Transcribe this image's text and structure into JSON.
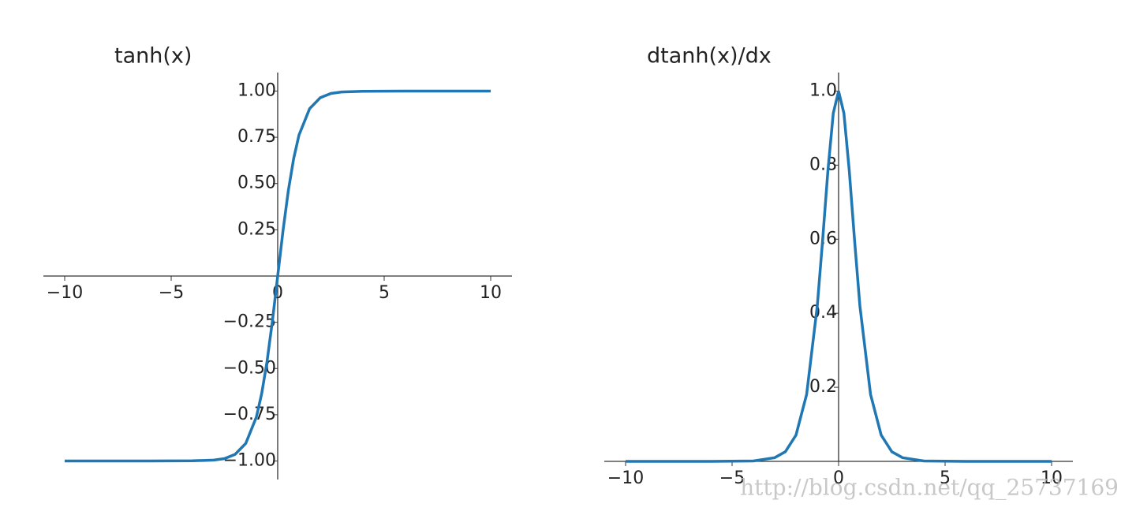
{
  "chart_data": [
    {
      "type": "line",
      "title": "tanh(x)",
      "color": "#1f77b4",
      "x": [
        -10,
        -8,
        -6,
        -4,
        -3,
        -2.5,
        -2,
        -1.5,
        -1,
        -0.75,
        -0.5,
        -0.25,
        0,
        0.25,
        0.5,
        0.75,
        1,
        1.5,
        2,
        2.5,
        3,
        4,
        6,
        8,
        10
      ],
      "values": [
        -1.0,
        -1.0,
        -1.0,
        -0.999,
        -0.995,
        -0.987,
        -0.964,
        -0.905,
        -0.762,
        -0.635,
        -0.462,
        -0.245,
        0,
        0.245,
        0.462,
        0.635,
        0.762,
        0.905,
        0.964,
        0.987,
        0.995,
        0.999,
        1.0,
        1.0,
        1.0
      ],
      "xlim": [
        -11,
        11
      ],
      "ylim": [
        -1.1,
        1.1
      ],
      "xticks": [
        {
          "value": -10,
          "label": "−10"
        },
        {
          "value": -5,
          "label": "−5"
        },
        0,
        5,
        10
      ],
      "yticks": [
        {
          "value": -1,
          "label": "−1.00"
        },
        {
          "value": -0.75,
          "label": "−0.75"
        },
        {
          "value": -0.5,
          "label": "−0.50"
        },
        {
          "value": -0.25,
          "label": "−0.25"
        },
        {
          "value": 0.25,
          "label": "0.25"
        },
        {
          "value": 0.5,
          "label": "0.50"
        },
        {
          "value": 0.75,
          "label": "0.75"
        },
        {
          "value": 1,
          "label": "1.00"
        }
      ]
    },
    {
      "type": "line",
      "title": "dtanh(x)/dx",
      "color": "#1f77b4",
      "x": [
        -10,
        -8,
        -6,
        -4,
        -3,
        -2.5,
        -2,
        -1.5,
        -1,
        -0.75,
        -0.5,
        -0.25,
        0,
        0.25,
        0.5,
        0.75,
        1,
        1.5,
        2,
        2.5,
        3,
        4,
        6,
        8,
        10
      ],
      "values": [
        0,
        0,
        0,
        0.001,
        0.01,
        0.026,
        0.071,
        0.181,
        0.42,
        0.597,
        0.786,
        0.94,
        1,
        0.94,
        0.786,
        0.597,
        0.42,
        0.181,
        0.071,
        0.026,
        0.01,
        0.001,
        0,
        0,
        0
      ],
      "xlim": [
        -11,
        11
      ],
      "ylim": [
        0,
        1.05
      ],
      "xticks": [
        {
          "value": -10,
          "label": "−10"
        },
        {
          "value": -5,
          "label": "−5"
        },
        0,
        5,
        10
      ],
      "yticks": [
        0.2,
        0.4,
        0.6,
        0.8,
        {
          "value": 1,
          "label": "1.0"
        }
      ]
    }
  ],
  "watermark": "http://blog.csdn.net/qq_25737169"
}
